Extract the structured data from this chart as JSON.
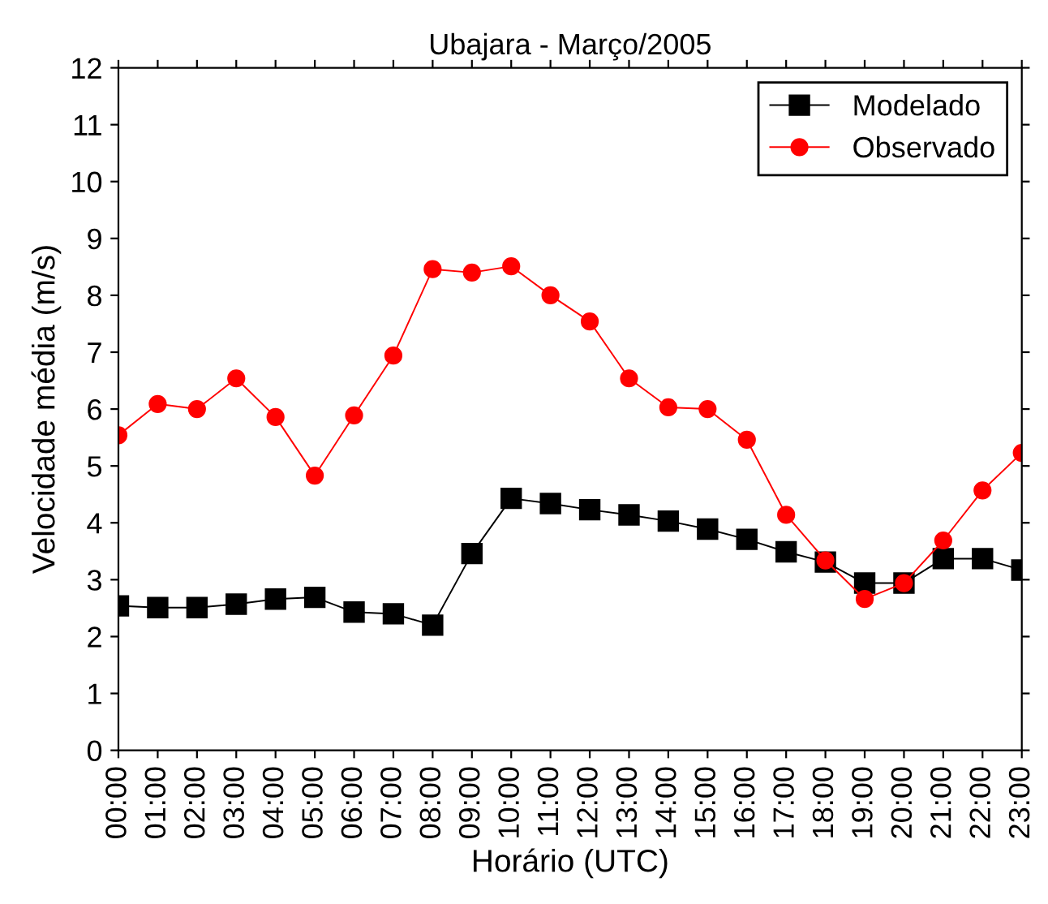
{
  "chart_data": {
    "type": "line",
    "title": "Ubajara - Março/2005",
    "xlabel": "Horário (UTC)",
    "ylabel": "Velocidade média (m/s)",
    "categories": [
      "00:00",
      "01:00",
      "02:00",
      "03:00",
      "04:00",
      "05:00",
      "06:00",
      "07:00",
      "08:00",
      "09:00",
      "10:00",
      "11:00",
      "12:00",
      "13:00",
      "14:00",
      "15:00",
      "16:00",
      "17:00",
      "18:00",
      "19:00",
      "20:00",
      "21:00",
      "22:00",
      "23:00"
    ],
    "series": [
      {
        "name": "Modelado",
        "color": "#000000",
        "marker": "square",
        "values": [
          2.54,
          2.51,
          2.51,
          2.57,
          2.66,
          2.69,
          2.43,
          2.4,
          2.2,
          3.46,
          4.43,
          4.34,
          4.23,
          4.14,
          4.03,
          3.89,
          3.71,
          3.49,
          3.31,
          2.94,
          2.94,
          3.37,
          3.37,
          3.17
        ]
      },
      {
        "name": "Observado",
        "color": "#ff0000",
        "marker": "circle",
        "values": [
          5.54,
          6.09,
          6.0,
          6.54,
          5.86,
          4.83,
          5.89,
          6.94,
          8.46,
          8.4,
          8.51,
          8.0,
          7.54,
          6.54,
          6.03,
          6.0,
          5.46,
          4.14,
          3.34,
          2.66,
          2.94,
          3.69,
          4.57,
          5.23
        ]
      }
    ],
    "ylim": [
      0,
      12
    ],
    "yticks": [
      0,
      1,
      2,
      3,
      4,
      5,
      6,
      7,
      8,
      9,
      10,
      11,
      12
    ],
    "grid": false,
    "legend": "top right",
    "line_style": "solid"
  }
}
